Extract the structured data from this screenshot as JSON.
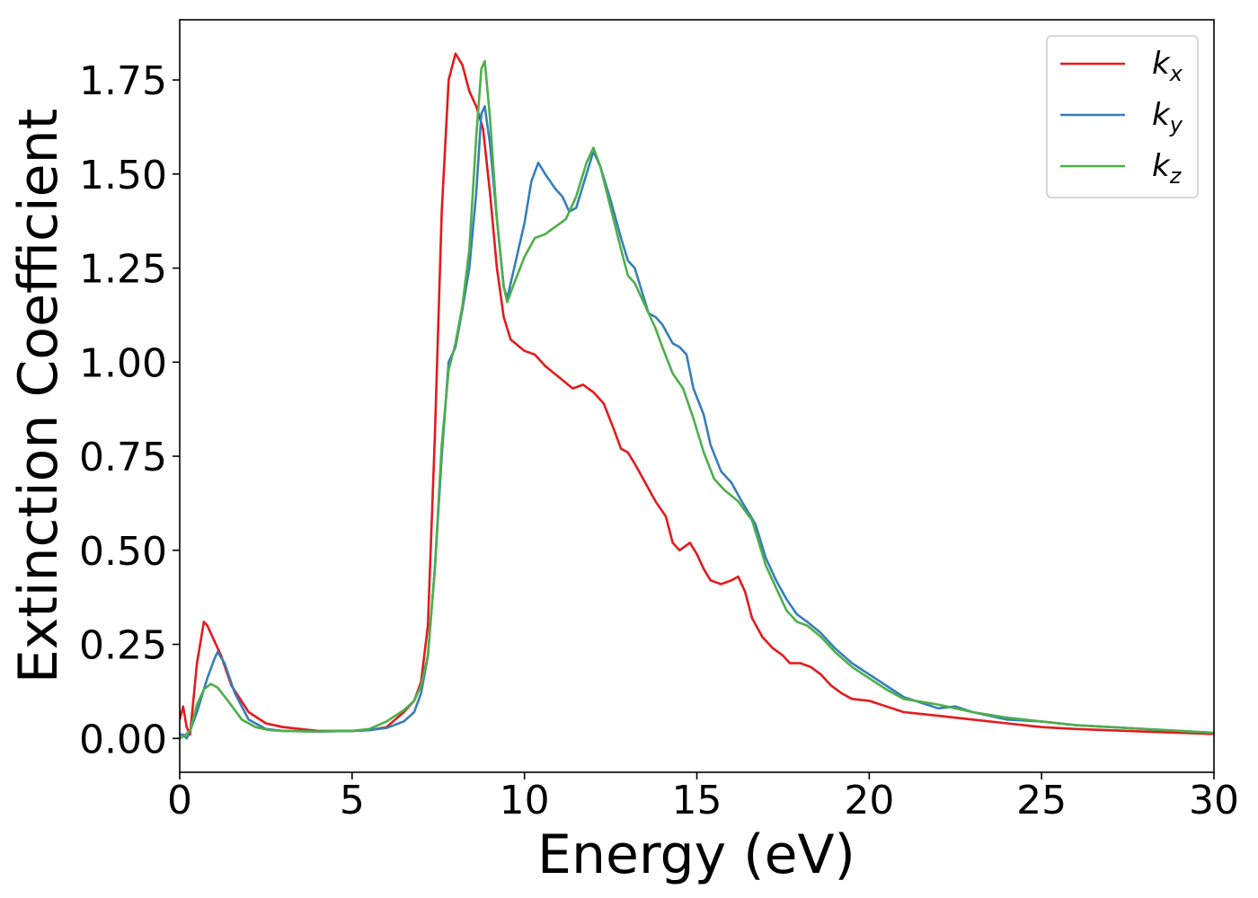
{
  "chart_data": {
    "type": "line",
    "xlabel": "Energy (eV)",
    "ylabel": "Extinction Coefficient",
    "xlim": [
      0,
      30
    ],
    "ylim": [
      -0.09,
      1.91
    ],
    "xticks": [
      0,
      5,
      10,
      15,
      20,
      25,
      30
    ],
    "xtick_labels": [
      "0",
      "5",
      "10",
      "15",
      "20",
      "25",
      "30"
    ],
    "yticks": [
      0,
      0.25,
      0.5,
      0.75,
      1.0,
      1.25,
      1.5,
      1.75
    ],
    "ytick_labels": [
      "0.00",
      "0.25",
      "0.50",
      "0.75",
      "1.00",
      "1.25",
      "1.50",
      "1.75"
    ],
    "grid": false,
    "legend_position": "top-right",
    "series": [
      {
        "name": "k",
        "sub": "x",
        "color": "#e41a1c",
        "points": [
          [
            0,
            0.05
          ],
          [
            0.1,
            0.085
          ],
          [
            0.2,
            0.03
          ],
          [
            0.3,
            0.01
          ],
          [
            0.5,
            0.2
          ],
          [
            0.7,
            0.31
          ],
          [
            0.8,
            0.3
          ],
          [
            1.0,
            0.26
          ],
          [
            1.2,
            0.22
          ],
          [
            1.5,
            0.14
          ],
          [
            2.0,
            0.07
          ],
          [
            2.5,
            0.04
          ],
          [
            3.0,
            0.03
          ],
          [
            4.0,
            0.02
          ],
          [
            5.0,
            0.02
          ],
          [
            5.5,
            0.022
          ],
          [
            6.0,
            0.03
          ],
          [
            6.5,
            0.07
          ],
          [
            6.8,
            0.1
          ],
          [
            7.0,
            0.15
          ],
          [
            7.2,
            0.3
          ],
          [
            7.4,
            0.8
          ],
          [
            7.6,
            1.4
          ],
          [
            7.8,
            1.75
          ],
          [
            8.0,
            1.82
          ],
          [
            8.2,
            1.79
          ],
          [
            8.4,
            1.72
          ],
          [
            8.6,
            1.68
          ],
          [
            8.8,
            1.62
          ],
          [
            9.0,
            1.45
          ],
          [
            9.2,
            1.25
          ],
          [
            9.4,
            1.12
          ],
          [
            9.6,
            1.06
          ],
          [
            10.0,
            1.03
          ],
          [
            10.3,
            1.02
          ],
          [
            10.6,
            0.99
          ],
          [
            11.0,
            0.96
          ],
          [
            11.4,
            0.93
          ],
          [
            11.7,
            0.94
          ],
          [
            12.0,
            0.92
          ],
          [
            12.3,
            0.89
          ],
          [
            12.6,
            0.82
          ],
          [
            12.8,
            0.77
          ],
          [
            13.0,
            0.76
          ],
          [
            13.2,
            0.73
          ],
          [
            13.5,
            0.68
          ],
          [
            13.8,
            0.63
          ],
          [
            14.1,
            0.59
          ],
          [
            14.3,
            0.52
          ],
          [
            14.5,
            0.5
          ],
          [
            14.8,
            0.52
          ],
          [
            15.0,
            0.49
          ],
          [
            15.2,
            0.45
          ],
          [
            15.4,
            0.42
          ],
          [
            15.7,
            0.41
          ],
          [
            16.0,
            0.42
          ],
          [
            16.2,
            0.43
          ],
          [
            16.4,
            0.39
          ],
          [
            16.6,
            0.32
          ],
          [
            16.9,
            0.27
          ],
          [
            17.2,
            0.24
          ],
          [
            17.5,
            0.22
          ],
          [
            17.7,
            0.2
          ],
          [
            18.0,
            0.2
          ],
          [
            18.3,
            0.19
          ],
          [
            18.6,
            0.17
          ],
          [
            18.9,
            0.14
          ],
          [
            19.2,
            0.12
          ],
          [
            19.5,
            0.105
          ],
          [
            20.0,
            0.1
          ],
          [
            20.5,
            0.085
          ],
          [
            21.0,
            0.07
          ],
          [
            22.0,
            0.06
          ],
          [
            23.0,
            0.05
          ],
          [
            24.0,
            0.04
          ],
          [
            25.0,
            0.03
          ],
          [
            26.0,
            0.025
          ],
          [
            28.0,
            0.018
          ],
          [
            30.0,
            0.012
          ]
        ]
      },
      {
        "name": "k",
        "sub": "y",
        "color": "#377eb8",
        "points": [
          [
            0,
            0.01
          ],
          [
            0.1,
            0.01
          ],
          [
            0.2,
            0.0
          ],
          [
            0.3,
            0.02
          ],
          [
            0.5,
            0.07
          ],
          [
            0.8,
            0.16
          ],
          [
            1.0,
            0.21
          ],
          [
            1.1,
            0.23
          ],
          [
            1.3,
            0.2
          ],
          [
            1.6,
            0.12
          ],
          [
            2.0,
            0.05
          ],
          [
            2.5,
            0.025
          ],
          [
            3.0,
            0.02
          ],
          [
            4.0,
            0.018
          ],
          [
            5.0,
            0.02
          ],
          [
            5.5,
            0.022
          ],
          [
            6.0,
            0.028
          ],
          [
            6.5,
            0.045
          ],
          [
            6.8,
            0.07
          ],
          [
            7.0,
            0.12
          ],
          [
            7.2,
            0.22
          ],
          [
            7.4,
            0.45
          ],
          [
            7.6,
            0.75
          ],
          [
            7.8,
            1.0
          ],
          [
            8.0,
            1.04
          ],
          [
            8.2,
            1.14
          ],
          [
            8.4,
            1.25
          ],
          [
            8.6,
            1.45
          ],
          [
            8.75,
            1.66
          ],
          [
            8.85,
            1.68
          ],
          [
            9.0,
            1.58
          ],
          [
            9.2,
            1.38
          ],
          [
            9.4,
            1.2
          ],
          [
            9.5,
            1.17
          ],
          [
            9.7,
            1.25
          ],
          [
            10.0,
            1.37
          ],
          [
            10.2,
            1.48
          ],
          [
            10.4,
            1.53
          ],
          [
            10.6,
            1.5
          ],
          [
            10.9,
            1.46
          ],
          [
            11.1,
            1.44
          ],
          [
            11.3,
            1.4
          ],
          [
            11.5,
            1.41
          ],
          [
            11.8,
            1.5
          ],
          [
            12.0,
            1.56
          ],
          [
            12.2,
            1.52
          ],
          [
            12.5,
            1.43
          ],
          [
            12.8,
            1.33
          ],
          [
            13.0,
            1.27
          ],
          [
            13.2,
            1.25
          ],
          [
            13.4,
            1.19
          ],
          [
            13.6,
            1.13
          ],
          [
            13.8,
            1.12
          ],
          [
            14.0,
            1.1
          ],
          [
            14.3,
            1.05
          ],
          [
            14.5,
            1.04
          ],
          [
            14.7,
            1.02
          ],
          [
            14.9,
            0.93
          ],
          [
            15.2,
            0.86
          ],
          [
            15.4,
            0.78
          ],
          [
            15.7,
            0.71
          ],
          [
            16.0,
            0.68
          ],
          [
            16.3,
            0.63
          ],
          [
            16.7,
            0.57
          ],
          [
            17.0,
            0.48
          ],
          [
            17.3,
            0.42
          ],
          [
            17.6,
            0.37
          ],
          [
            17.9,
            0.33
          ],
          [
            18.2,
            0.31
          ],
          [
            18.6,
            0.28
          ],
          [
            19.0,
            0.24
          ],
          [
            19.5,
            0.2
          ],
          [
            20.0,
            0.17
          ],
          [
            20.5,
            0.14
          ],
          [
            21.0,
            0.11
          ],
          [
            21.5,
            0.095
          ],
          [
            22.0,
            0.08
          ],
          [
            22.5,
            0.085
          ],
          [
            23.0,
            0.07
          ],
          [
            24.0,
            0.05
          ],
          [
            25.0,
            0.045
          ],
          [
            26.0,
            0.035
          ],
          [
            28.0,
            0.025
          ],
          [
            30.0,
            0.015
          ]
        ]
      },
      {
        "name": "k",
        "sub": "z",
        "color": "#4daf4a",
        "points": [
          [
            0,
            0.0
          ],
          [
            0.1,
            0.005
          ],
          [
            0.3,
            0.02
          ],
          [
            0.5,
            0.09
          ],
          [
            0.7,
            0.13
          ],
          [
            0.9,
            0.145
          ],
          [
            1.1,
            0.135
          ],
          [
            1.4,
            0.1
          ],
          [
            1.8,
            0.05
          ],
          [
            2.2,
            0.03
          ],
          [
            2.6,
            0.022
          ],
          [
            3.0,
            0.02
          ],
          [
            4.0,
            0.018
          ],
          [
            5.0,
            0.02
          ],
          [
            5.5,
            0.025
          ],
          [
            6.0,
            0.045
          ],
          [
            6.5,
            0.075
          ],
          [
            6.8,
            0.1
          ],
          [
            7.0,
            0.14
          ],
          [
            7.2,
            0.22
          ],
          [
            7.4,
            0.45
          ],
          [
            7.6,
            0.78
          ],
          [
            7.8,
            0.98
          ],
          [
            8.0,
            1.05
          ],
          [
            8.2,
            1.15
          ],
          [
            8.4,
            1.3
          ],
          [
            8.6,
            1.6
          ],
          [
            8.75,
            1.78
          ],
          [
            8.85,
            1.8
          ],
          [
            9.0,
            1.65
          ],
          [
            9.2,
            1.38
          ],
          [
            9.4,
            1.2
          ],
          [
            9.5,
            1.16
          ],
          [
            9.7,
            1.21
          ],
          [
            10.0,
            1.28
          ],
          [
            10.3,
            1.33
          ],
          [
            10.6,
            1.34
          ],
          [
            10.9,
            1.36
          ],
          [
            11.2,
            1.38
          ],
          [
            11.5,
            1.44
          ],
          [
            11.8,
            1.53
          ],
          [
            12.0,
            1.57
          ],
          [
            12.2,
            1.52
          ],
          [
            12.5,
            1.41
          ],
          [
            12.8,
            1.3
          ],
          [
            13.0,
            1.23
          ],
          [
            13.2,
            1.21
          ],
          [
            13.5,
            1.15
          ],
          [
            13.8,
            1.09
          ],
          [
            14.0,
            1.04
          ],
          [
            14.3,
            0.97
          ],
          [
            14.6,
            0.93
          ],
          [
            14.9,
            0.85
          ],
          [
            15.2,
            0.76
          ],
          [
            15.5,
            0.69
          ],
          [
            15.8,
            0.66
          ],
          [
            16.2,
            0.63
          ],
          [
            16.6,
            0.58
          ],
          [
            17.0,
            0.46
          ],
          [
            17.3,
            0.4
          ],
          [
            17.6,
            0.34
          ],
          [
            17.9,
            0.31
          ],
          [
            18.2,
            0.3
          ],
          [
            18.6,
            0.27
          ],
          [
            19.0,
            0.23
          ],
          [
            19.5,
            0.19
          ],
          [
            20.0,
            0.16
          ],
          [
            20.5,
            0.13
          ],
          [
            21.0,
            0.105
          ],
          [
            22.0,
            0.09
          ],
          [
            23.0,
            0.07
          ],
          [
            24.0,
            0.055
          ],
          [
            25.0,
            0.045
          ],
          [
            26.0,
            0.035
          ],
          [
            28.0,
            0.025
          ],
          [
            30.0,
            0.015
          ]
        ]
      }
    ]
  }
}
